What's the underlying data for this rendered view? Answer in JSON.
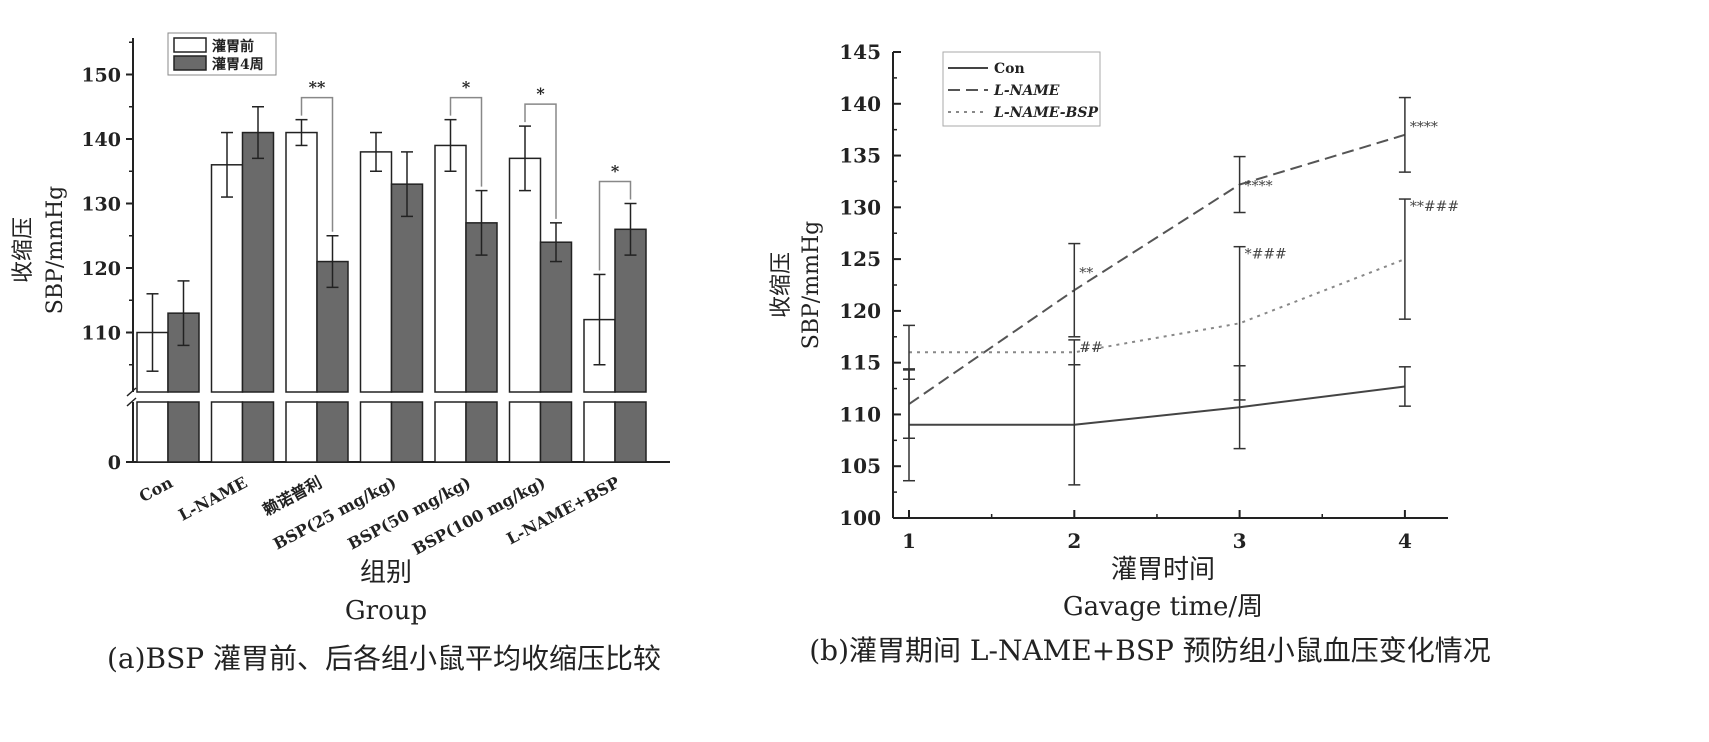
{
  "chart_data": [
    {
      "type": "bar",
      "ylabel": [
        "收缩压",
        "SBP/mmHg"
      ],
      "xlabel": [
        "组别",
        "Group"
      ],
      "caption": "(a)BSP 灌胃前、后各组小鼠平均收缩压比较",
      "categories": [
        "Con",
        "L-NAME",
        "赖诺普利",
        "BSP(25 mg/kg)",
        "BSP(50 mg/kg)",
        "BSP(100 mg/kg)",
        "L-NAME+BSP"
      ],
      "series": [
        {
          "name": "灌胃前",
          "color": "#ffffff",
          "values": [
            110,
            136,
            141,
            138,
            139,
            137,
            112
          ],
          "errors": [
            6,
            5,
            2,
            3,
            4,
            5,
            7
          ]
        },
        {
          "name": "灌胃4周",
          "color": "#6a6a6a",
          "values": [
            113,
            141,
            121,
            133,
            127,
            124,
            126
          ],
          "errors": [
            5,
            4,
            4,
            5,
            5,
            3,
            4
          ]
        }
      ],
      "yticks": [
        0,
        110,
        120,
        130,
        140,
        150
      ],
      "ylim_upper": [
        100,
        155
      ],
      "axis_break": true,
      "significance": [
        "",
        "",
        "**",
        "",
        "*",
        "*",
        "*"
      ],
      "legend_position": "top-left"
    },
    {
      "type": "line",
      "ylabel": [
        "收缩压",
        "SBP/mmHg"
      ],
      "xlabel": [
        "灌胃时间",
        "Gavage time/周"
      ],
      "caption": "(b)灌胃期间 L-NAME+BSP 预防组小鼠血压变化情况",
      "x": [
        1,
        2,
        3,
        4
      ],
      "ylim": [
        100,
        145
      ],
      "yticks": [
        100,
        105,
        110,
        115,
        120,
        125,
        130,
        135,
        140,
        145
      ],
      "legend_position": "top-left",
      "series": [
        {
          "name": "Con",
          "style": "solid",
          "values": [
            109,
            109,
            110.7,
            112.7
          ],
          "errors": [
            5.4,
            5.8,
            4,
            1.9
          ],
          "annotations": [
            "",
            "",
            "",
            ""
          ]
        },
        {
          "name": "L-NAME",
          "style": "dashed",
          "values": [
            111,
            122,
            132.2,
            137
          ],
          "errors": [
            3.3,
            4.5,
            2.7,
            3.6
          ],
          "annotations": [
            "",
            "**",
            "****",
            "****"
          ]
        },
        {
          "name": "L-NAME-BSP",
          "style": "dotted",
          "values": [
            116,
            116,
            118.8,
            125
          ],
          "errors": [
            2.6,
            1.2,
            7.4,
            5.8
          ],
          "annotations": [
            "",
            "##",
            "*###",
            "**###"
          ]
        }
      ]
    }
  ]
}
